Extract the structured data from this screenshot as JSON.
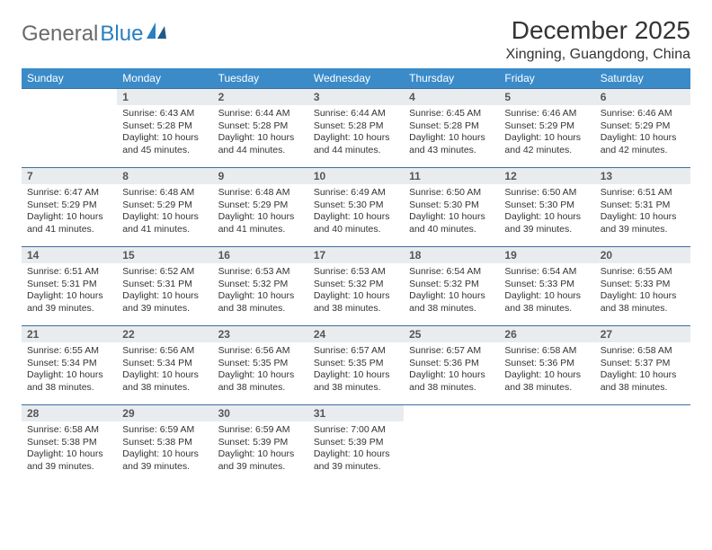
{
  "brand": {
    "part1": "General",
    "part2": "Blue"
  },
  "title": "December 2025",
  "location": "Xingning, Guangdong, China",
  "colors": {
    "header_bg": "#3b8bc9",
    "header_text": "#ffffff",
    "daynum_bg": "#e9ecef",
    "row_border": "#3b6ea0",
    "brand_gray": "#6a6a6a",
    "brand_blue": "#2a7fbf"
  },
  "weekdays": [
    "Sunday",
    "Monday",
    "Tuesday",
    "Wednesday",
    "Thursday",
    "Friday",
    "Saturday"
  ],
  "start_offset": 1,
  "days": [
    {
      "n": 1,
      "sunrise": "6:43 AM",
      "sunset": "5:28 PM",
      "daylight": "10 hours and 45 minutes."
    },
    {
      "n": 2,
      "sunrise": "6:44 AM",
      "sunset": "5:28 PM",
      "daylight": "10 hours and 44 minutes."
    },
    {
      "n": 3,
      "sunrise": "6:44 AM",
      "sunset": "5:28 PM",
      "daylight": "10 hours and 44 minutes."
    },
    {
      "n": 4,
      "sunrise": "6:45 AM",
      "sunset": "5:28 PM",
      "daylight": "10 hours and 43 minutes."
    },
    {
      "n": 5,
      "sunrise": "6:46 AM",
      "sunset": "5:29 PM",
      "daylight": "10 hours and 42 minutes."
    },
    {
      "n": 6,
      "sunrise": "6:46 AM",
      "sunset": "5:29 PM",
      "daylight": "10 hours and 42 minutes."
    },
    {
      "n": 7,
      "sunrise": "6:47 AM",
      "sunset": "5:29 PM",
      "daylight": "10 hours and 41 minutes."
    },
    {
      "n": 8,
      "sunrise": "6:48 AM",
      "sunset": "5:29 PM",
      "daylight": "10 hours and 41 minutes."
    },
    {
      "n": 9,
      "sunrise": "6:48 AM",
      "sunset": "5:29 PM",
      "daylight": "10 hours and 41 minutes."
    },
    {
      "n": 10,
      "sunrise": "6:49 AM",
      "sunset": "5:30 PM",
      "daylight": "10 hours and 40 minutes."
    },
    {
      "n": 11,
      "sunrise": "6:50 AM",
      "sunset": "5:30 PM",
      "daylight": "10 hours and 40 minutes."
    },
    {
      "n": 12,
      "sunrise": "6:50 AM",
      "sunset": "5:30 PM",
      "daylight": "10 hours and 39 minutes."
    },
    {
      "n": 13,
      "sunrise": "6:51 AM",
      "sunset": "5:31 PM",
      "daylight": "10 hours and 39 minutes."
    },
    {
      "n": 14,
      "sunrise": "6:51 AM",
      "sunset": "5:31 PM",
      "daylight": "10 hours and 39 minutes."
    },
    {
      "n": 15,
      "sunrise": "6:52 AM",
      "sunset": "5:31 PM",
      "daylight": "10 hours and 39 minutes."
    },
    {
      "n": 16,
      "sunrise": "6:53 AM",
      "sunset": "5:32 PM",
      "daylight": "10 hours and 38 minutes."
    },
    {
      "n": 17,
      "sunrise": "6:53 AM",
      "sunset": "5:32 PM",
      "daylight": "10 hours and 38 minutes."
    },
    {
      "n": 18,
      "sunrise": "6:54 AM",
      "sunset": "5:32 PM",
      "daylight": "10 hours and 38 minutes."
    },
    {
      "n": 19,
      "sunrise": "6:54 AM",
      "sunset": "5:33 PM",
      "daylight": "10 hours and 38 minutes."
    },
    {
      "n": 20,
      "sunrise": "6:55 AM",
      "sunset": "5:33 PM",
      "daylight": "10 hours and 38 minutes."
    },
    {
      "n": 21,
      "sunrise": "6:55 AM",
      "sunset": "5:34 PM",
      "daylight": "10 hours and 38 minutes."
    },
    {
      "n": 22,
      "sunrise": "6:56 AM",
      "sunset": "5:34 PM",
      "daylight": "10 hours and 38 minutes."
    },
    {
      "n": 23,
      "sunrise": "6:56 AM",
      "sunset": "5:35 PM",
      "daylight": "10 hours and 38 minutes."
    },
    {
      "n": 24,
      "sunrise": "6:57 AM",
      "sunset": "5:35 PM",
      "daylight": "10 hours and 38 minutes."
    },
    {
      "n": 25,
      "sunrise": "6:57 AM",
      "sunset": "5:36 PM",
      "daylight": "10 hours and 38 minutes."
    },
    {
      "n": 26,
      "sunrise": "6:58 AM",
      "sunset": "5:36 PM",
      "daylight": "10 hours and 38 minutes."
    },
    {
      "n": 27,
      "sunrise": "6:58 AM",
      "sunset": "5:37 PM",
      "daylight": "10 hours and 38 minutes."
    },
    {
      "n": 28,
      "sunrise": "6:58 AM",
      "sunset": "5:38 PM",
      "daylight": "10 hours and 39 minutes."
    },
    {
      "n": 29,
      "sunrise": "6:59 AM",
      "sunset": "5:38 PM",
      "daylight": "10 hours and 39 minutes."
    },
    {
      "n": 30,
      "sunrise": "6:59 AM",
      "sunset": "5:39 PM",
      "daylight": "10 hours and 39 minutes."
    },
    {
      "n": 31,
      "sunrise": "7:00 AM",
      "sunset": "5:39 PM",
      "daylight": "10 hours and 39 minutes."
    }
  ],
  "labels": {
    "sunrise": "Sunrise:",
    "sunset": "Sunset:",
    "daylight": "Daylight:"
  }
}
